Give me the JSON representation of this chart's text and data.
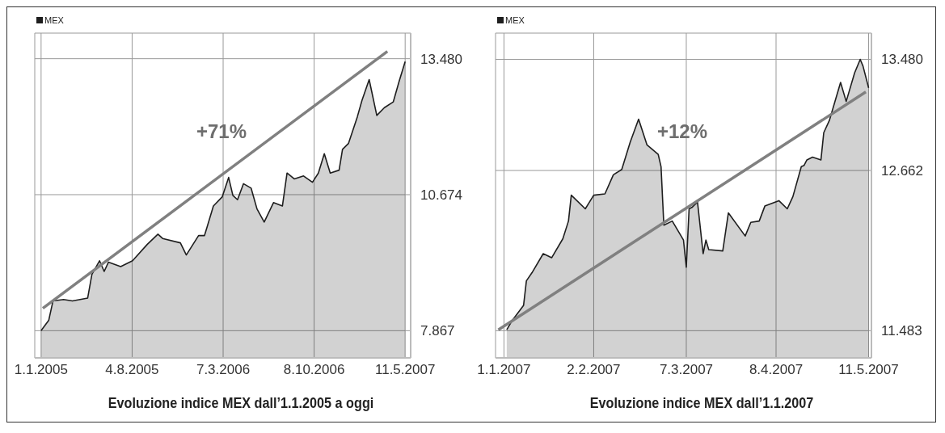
{
  "chart_data": [
    {
      "type": "area",
      "title": "Evoluzione indice MEX dall’1.1.2005 a oggi",
      "legend": "top left",
      "grid": true,
      "x": [
        "2005-01-01",
        "2005-01-19",
        "2005-01-29",
        "2005-02-23",
        "2005-03-16",
        "2005-04-21",
        "2005-05-01",
        "2005-05-19",
        "2005-05-30",
        "2005-06-09",
        "2005-07-08",
        "2005-08-05",
        "2005-09-09",
        "2005-10-04",
        "2005-10-15",
        "2005-11-26",
        "2005-12-10",
        "2006-01-08",
        "2006-01-22",
        "2006-02-12",
        "2006-03-05",
        "2006-03-20",
        "2006-03-30",
        "2006-04-10",
        "2006-04-24",
        "2006-05-12",
        "2006-05-26",
        "2006-06-12",
        "2006-07-04",
        "2006-07-25",
        "2006-08-05",
        "2006-08-22",
        "2006-09-13",
        "2006-10-04",
        "2006-10-18",
        "2006-11-01",
        "2006-11-15",
        "2006-12-06",
        "2006-12-14",
        "2006-12-28",
        "2007-01-18",
        "2007-01-29",
        "2007-02-15",
        "2007-03-05",
        "2007-03-23",
        "2007-04-13",
        "2007-04-27",
        "2007-05-11"
      ],
      "series": [
        {
          "name": "MEX",
          "color": "#1e1e1e",
          "values": [
            7870,
            8080,
            8480,
            8510,
            8480,
            8540,
            9030,
            9310,
            9090,
            9280,
            9190,
            9310,
            9650,
            9860,
            9770,
            9680,
            9430,
            9830,
            9830,
            10440,
            10630,
            11030,
            10660,
            10570,
            10900,
            10810,
            10380,
            10110,
            10510,
            10440,
            11120,
            11000,
            11060,
            10930,
            11120,
            11520,
            11120,
            11180,
            11610,
            11730,
            12280,
            12620,
            13050,
            12310,
            12470,
            12590,
            13020,
            13420
          ]
        },
        {
          "type": "line",
          "color": "#808080",
          "x": [
            "2005-01-05",
            "2007-03-30"
          ],
          "values": [
            8330,
            13630
          ]
        }
      ],
      "xlim": [
        "2004-12-17",
        "2007-05-24"
      ],
      "xticks": [
        {
          "value": "2005-01-01",
          "label": "1.1.2005"
        },
        {
          "value": "2005-08-04",
          "label": "4.8.2005"
        },
        {
          "value": "2006-03-07",
          "label": "7.3.2006"
        },
        {
          "value": "2006-10-08",
          "label": "8.10.2006"
        },
        {
          "value": "2007-05-11",
          "label": "11.5.2007"
        }
      ],
      "ylim": [
        7306,
        14008
      ],
      "yticks": [
        {
          "value": 7867,
          "label": "7.867"
        },
        {
          "value": 10674,
          "label": "10.674"
        },
        {
          "value": 13480,
          "label": "13.480"
        }
      ],
      "annotations": [
        "+71%"
      ]
    },
    {
      "type": "area",
      "title": "Evoluzione indice MEX dall’1.1.2007",
      "legend": "top left",
      "grid": true,
      "x": [
        "2007-01-02",
        "2007-01-04",
        "2007-01-08",
        "2007-01-09",
        "2007-01-11",
        "2007-01-15",
        "2007-01-18",
        "2007-01-22",
        "2007-01-24",
        "2007-01-25",
        "2007-01-30",
        "2007-02-02",
        "2007-02-06",
        "2007-02-09",
        "2007-02-12",
        "2007-02-15",
        "2007-02-18",
        "2007-02-21",
        "2007-02-25",
        "2007-02-26",
        "2007-02-27",
        "2007-03-02",
        "2007-03-06",
        "2007-03-07",
        "2007-03-08",
        "2007-03-09",
        "2007-03-11",
        "2007-03-13",
        "2007-03-14",
        "2007-03-15",
        "2007-03-20",
        "2007-03-22",
        "2007-03-28",
        "2007-03-30",
        "2007-04-02",
        "2007-04-04",
        "2007-04-09",
        "2007-04-12",
        "2007-04-14",
        "2007-04-17",
        "2007-04-18",
        "2007-04-19",
        "2007-04-21",
        "2007-04-24",
        "2007-04-25",
        "2007-04-27",
        "2007-05-01",
        "2007-05-03",
        "2007-05-06",
        "2007-05-08",
        "2007-05-09",
        "2007-05-11"
      ],
      "series": [
        {
          "name": "MEX",
          "color": "#1e1e1e",
          "values": [
            11490,
            11560,
            11670,
            11850,
            11910,
            12050,
            12020,
            12160,
            12290,
            12480,
            12380,
            12480,
            12490,
            12630,
            12670,
            12870,
            13040,
            12850,
            12780,
            12690,
            12260,
            12290,
            12150,
            11950,
            12380,
            12390,
            12430,
            12050,
            12150,
            12080,
            12070,
            12350,
            12180,
            12280,
            12290,
            12400,
            12440,
            12380,
            12470,
            12690,
            12700,
            12740,
            12760,
            12740,
            12940,
            13030,
            13310,
            13170,
            13380,
            13480,
            13430,
            13270
          ]
        },
        {
          "type": "line",
          "color": "#808080",
          "x": [
            "2006-12-30",
            "2007-05-10"
          ],
          "values": [
            11490,
            13240
          ]
        }
      ],
      "xlim": [
        "2006-12-29",
        "2007-05-12"
      ],
      "xticks": [
        {
          "value": "2007-01-01",
          "label": "1.1.2007"
        },
        {
          "value": "2007-02-02",
          "label": "2.2.2007"
        },
        {
          "value": "2007-03-07",
          "label": "7.3.2007"
        },
        {
          "value": "2007-04-08",
          "label": "8.4.2007"
        },
        {
          "value": "2007-05-11",
          "label": "11.5.2007"
        }
      ],
      "ylim": [
        11283,
        13673
      ],
      "yticks": [
        {
          "value": 11483,
          "label": "11.483"
        },
        {
          "value": 12662,
          "label": "12.662"
        },
        {
          "value": 13480,
          "label": "13.480"
        }
      ],
      "annotations": [
        "+12%"
      ]
    }
  ]
}
